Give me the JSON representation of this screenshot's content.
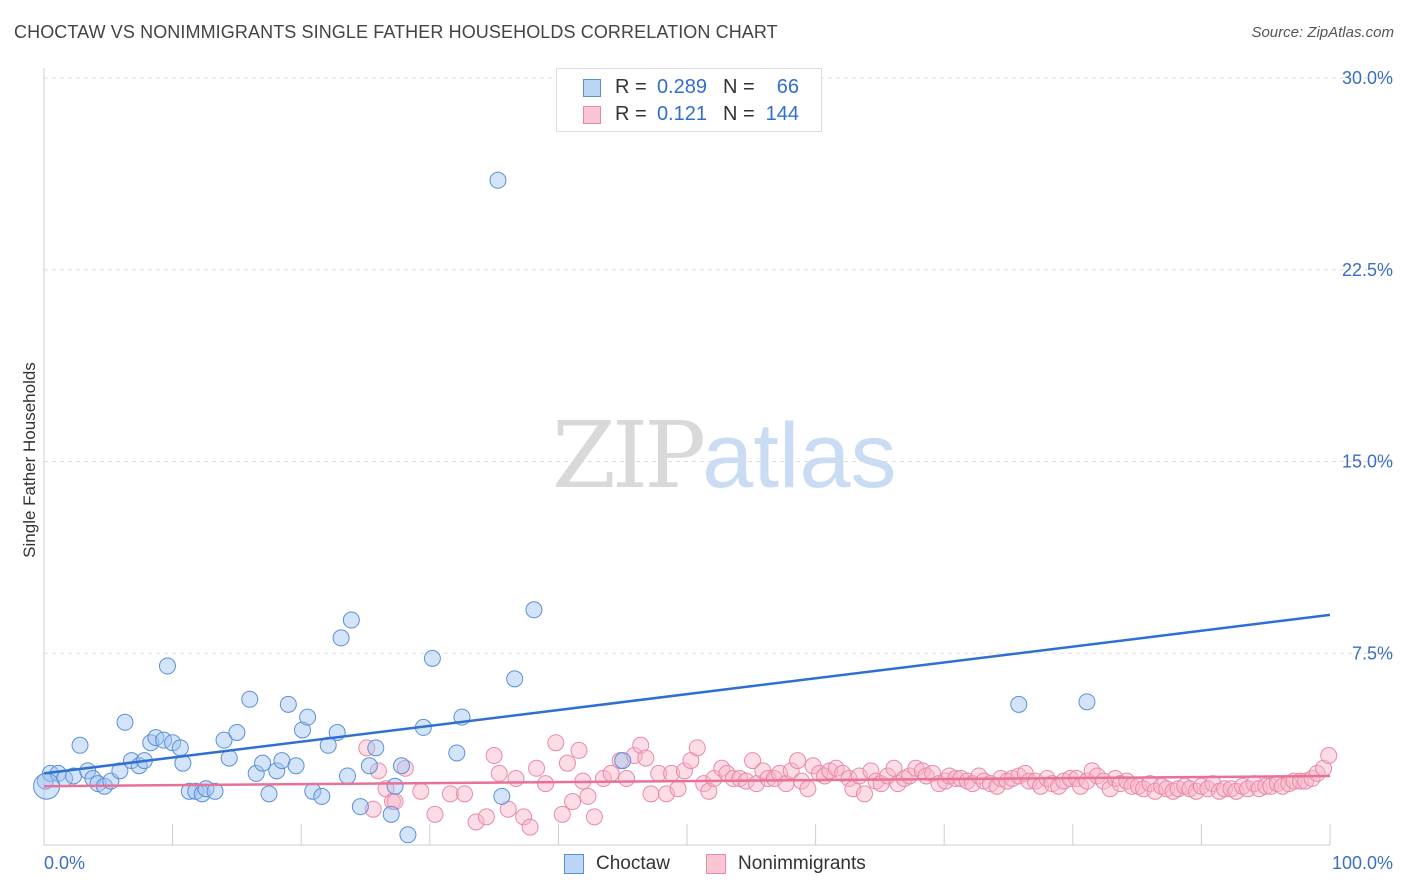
{
  "header": {
    "title": "CHOCTAW VS NONIMMIGRANTS SINGLE FATHER HOUSEHOLDS CORRELATION CHART",
    "source": "Source: ZipAtlas.com"
  },
  "watermark": {
    "zip": "ZIP",
    "atlas": "atlas"
  },
  "legend": {
    "rows": [
      {
        "r_label": "R =",
        "r_value": "0.289",
        "n_label": "N =",
        "n_value": "66",
        "fill": "#bcd5f5",
        "stroke": "#5b8fd8"
      },
      {
        "r_label": "R =",
        "r_value": "0.121",
        "n_label": "N =",
        "n_value": "144",
        "fill": "#f9c5d3",
        "stroke": "#e88aa6"
      }
    ]
  },
  "bottom_legend": {
    "items": [
      "Choctaw",
      "Nonimmigrants"
    ]
  },
  "colors": {
    "choctaw_fill": "rgba(160,196,240,0.45)",
    "choctaw_stroke": "#5b8fd8",
    "choctaw_line": "#2f6fd1",
    "nonimm_fill": "rgba(248,180,200,0.45)",
    "nonimm_stroke": "#e88aa6",
    "nonimm_line": "#e8719a",
    "axis_label": "#3a6fc4",
    "grid": "#dddddd"
  },
  "chart_data": {
    "type": "scatter",
    "title": "CHOCTAW VS NONIMMIGRANTS SINGLE FATHER HOUSEHOLDS CORRELATION CHART",
    "xlabel": "",
    "ylabel": "Single Father Households",
    "xlim": [
      0,
      100
    ],
    "ylim": [
      0,
      30
    ],
    "x_tick_labels": [
      "0.0%",
      "100.0%"
    ],
    "y_ticks": [
      7.5,
      15.0,
      22.5,
      30.0
    ],
    "y_tick_labels": [
      "7.5%",
      "15.0%",
      "22.5%",
      "30.0%"
    ],
    "grid": true,
    "legend_placement": "top-center",
    "series": [
      {
        "name": "Choctaw",
        "r": 0.289,
        "n": 66,
        "trend": [
          [
            0,
            2.8
          ],
          [
            100,
            9.0
          ]
        ],
        "points": [
          [
            0.1,
            2.5
          ],
          [
            0.5,
            2.8
          ],
          [
            1.1,
            2.8
          ],
          [
            1.6,
            2.6
          ],
          [
            2.3,
            2.7
          ],
          [
            2.8,
            3.9
          ],
          [
            3.4,
            2.9
          ],
          [
            3.8,
            2.6
          ],
          [
            4.2,
            2.4
          ],
          [
            4.7,
            2.3
          ],
          [
            5.2,
            2.5
          ],
          [
            5.9,
            2.9
          ],
          [
            6.3,
            4.8
          ],
          [
            6.8,
            3.3
          ],
          [
            7.4,
            3.1
          ],
          [
            7.8,
            3.3
          ],
          [
            8.3,
            4.0
          ],
          [
            8.7,
            4.2
          ],
          [
            9.3,
            4.1
          ],
          [
            9.6,
            7.0
          ],
          [
            10.0,
            4.0
          ],
          [
            10.6,
            3.8
          ],
          [
            10.8,
            3.2
          ],
          [
            11.3,
            2.1
          ],
          [
            11.8,
            2.1
          ],
          [
            12.3,
            2.0
          ],
          [
            12.6,
            2.2
          ],
          [
            13.3,
            2.1
          ],
          [
            14.0,
            4.1
          ],
          [
            14.4,
            3.4
          ],
          [
            15.0,
            4.4
          ],
          [
            16.0,
            5.7
          ],
          [
            16.5,
            2.8
          ],
          [
            17.0,
            3.2
          ],
          [
            17.5,
            2.0
          ],
          [
            18.1,
            2.9
          ],
          [
            18.5,
            3.3
          ],
          [
            19.0,
            5.5
          ],
          [
            19.6,
            3.1
          ],
          [
            20.1,
            4.5
          ],
          [
            20.5,
            5.0
          ],
          [
            20.9,
            2.1
          ],
          [
            21.6,
            1.9
          ],
          [
            22.1,
            3.9
          ],
          [
            22.8,
            4.4
          ],
          [
            23.1,
            8.1
          ],
          [
            23.6,
            2.7
          ],
          [
            23.9,
            8.8
          ],
          [
            24.6,
            1.5
          ],
          [
            25.3,
            3.1
          ],
          [
            25.8,
            3.8
          ],
          [
            27.0,
            1.2
          ],
          [
            27.3,
            2.3
          ],
          [
            27.8,
            3.1
          ],
          [
            28.3,
            0.4
          ],
          [
            29.5,
            4.6
          ],
          [
            30.2,
            7.3
          ],
          [
            32.1,
            3.6
          ],
          [
            32.5,
            5.0
          ],
          [
            35.3,
            26.0
          ],
          [
            35.6,
            1.9
          ],
          [
            36.6,
            6.5
          ],
          [
            38.1,
            9.2
          ],
          [
            45.0,
            3.3
          ],
          [
            75.8,
            5.5
          ],
          [
            81.1,
            5.6
          ]
        ]
      },
      {
        "name": "Nonimmigrants",
        "r": 0.121,
        "n": 144,
        "trend": [
          [
            0,
            2.3
          ],
          [
            100,
            2.7
          ]
        ],
        "points": [
          [
            25.1,
            3.8
          ],
          [
            25.6,
            1.4
          ],
          [
            26.0,
            2.9
          ],
          [
            26.6,
            2.2
          ],
          [
            27.1,
            1.7
          ],
          [
            27.3,
            1.7
          ],
          [
            28.1,
            3.0
          ],
          [
            29.3,
            2.1
          ],
          [
            30.4,
            1.2
          ],
          [
            31.6,
            2.0
          ],
          [
            32.7,
            2.0
          ],
          [
            33.6,
            0.9
          ],
          [
            34.4,
            1.1
          ],
          [
            35.0,
            3.5
          ],
          [
            35.4,
            2.8
          ],
          [
            36.1,
            1.4
          ],
          [
            36.7,
            2.6
          ],
          [
            37.3,
            1.1
          ],
          [
            37.8,
            0.7
          ],
          [
            38.3,
            3.0
          ],
          [
            39.0,
            2.4
          ],
          [
            39.8,
            4.0
          ],
          [
            40.3,
            1.2
          ],
          [
            40.7,
            3.2
          ],
          [
            41.1,
            1.7
          ],
          [
            41.6,
            3.7
          ],
          [
            41.9,
            2.5
          ],
          [
            42.3,
            1.9
          ],
          [
            42.8,
            1.1
          ],
          [
            43.5,
            2.6
          ],
          [
            44.1,
            2.8
          ],
          [
            44.8,
            3.3
          ],
          [
            45.3,
            2.6
          ],
          [
            45.9,
            3.5
          ],
          [
            46.4,
            3.9
          ],
          [
            46.8,
            3.4
          ],
          [
            47.2,
            2.0
          ],
          [
            47.8,
            2.8
          ],
          [
            48.4,
            2.0
          ],
          [
            48.8,
            2.8
          ],
          [
            49.3,
            2.2
          ],
          [
            49.8,
            2.9
          ],
          [
            50.3,
            3.3
          ],
          [
            50.8,
            3.8
          ],
          [
            51.3,
            2.4
          ],
          [
            51.7,
            2.1
          ],
          [
            52.1,
            2.6
          ],
          [
            52.7,
            3.0
          ],
          [
            53.1,
            2.8
          ],
          [
            53.6,
            2.6
          ],
          [
            54.1,
            2.6
          ],
          [
            54.6,
            2.5
          ],
          [
            55.1,
            3.3
          ],
          [
            55.4,
            2.4
          ],
          [
            55.9,
            2.9
          ],
          [
            56.3,
            2.6
          ],
          [
            56.8,
            2.6
          ],
          [
            57.2,
            2.8
          ],
          [
            57.7,
            2.4
          ],
          [
            58.1,
            2.9
          ],
          [
            58.6,
            3.3
          ],
          [
            58.9,
            2.5
          ],
          [
            59.4,
            2.2
          ],
          [
            59.8,
            3.1
          ],
          [
            60.3,
            2.8
          ],
          [
            60.7,
            2.7
          ],
          [
            61.1,
            2.9
          ],
          [
            61.6,
            3.0
          ],
          [
            62.1,
            2.8
          ],
          [
            62.6,
            2.6
          ],
          [
            62.9,
            2.2
          ],
          [
            63.4,
            2.7
          ],
          [
            63.8,
            2.0
          ],
          [
            64.3,
            2.9
          ],
          [
            64.7,
            2.5
          ],
          [
            65.1,
            2.4
          ],
          [
            65.6,
            2.7
          ],
          [
            66.1,
            3.0
          ],
          [
            66.4,
            2.4
          ],
          [
            66.9,
            2.6
          ],
          [
            67.3,
            2.7
          ],
          [
            67.8,
            3.0
          ],
          [
            68.3,
            2.9
          ],
          [
            68.6,
            2.7
          ],
          [
            69.1,
            2.8
          ],
          [
            69.6,
            2.4
          ],
          [
            70.1,
            2.5
          ],
          [
            70.4,
            2.7
          ],
          [
            70.9,
            2.6
          ],
          [
            71.3,
            2.6
          ],
          [
            71.8,
            2.5
          ],
          [
            72.2,
            2.4
          ],
          [
            72.7,
            2.7
          ],
          [
            73.1,
            2.5
          ],
          [
            73.6,
            2.4
          ],
          [
            74.1,
            2.3
          ],
          [
            74.4,
            2.6
          ],
          [
            74.9,
            2.5
          ],
          [
            75.3,
            2.6
          ],
          [
            75.8,
            2.7
          ],
          [
            76.3,
            2.8
          ],
          [
            76.6,
            2.5
          ],
          [
            77.1,
            2.5
          ],
          [
            77.5,
            2.3
          ],
          [
            78.0,
            2.6
          ],
          [
            78.4,
            2.4
          ],
          [
            78.9,
            2.3
          ],
          [
            79.3,
            2.5
          ],
          [
            79.8,
            2.6
          ],
          [
            80.3,
            2.6
          ],
          [
            80.6,
            2.3
          ],
          [
            81.1,
            2.5
          ],
          [
            81.5,
            2.9
          ],
          [
            81.9,
            2.7
          ],
          [
            82.4,
            2.5
          ],
          [
            82.9,
            2.2
          ],
          [
            83.3,
            2.6
          ],
          [
            83.7,
            2.4
          ],
          [
            84.2,
            2.5
          ],
          [
            84.6,
            2.3
          ],
          [
            85.1,
            2.3
          ],
          [
            85.5,
            2.2
          ],
          [
            86.0,
            2.4
          ],
          [
            86.4,
            2.1
          ],
          [
            86.9,
            2.3
          ],
          [
            87.3,
            2.2
          ],
          [
            87.8,
            2.1
          ],
          [
            88.2,
            2.2
          ],
          [
            88.7,
            2.3
          ],
          [
            89.1,
            2.2
          ],
          [
            89.6,
            2.1
          ],
          [
            90.0,
            2.3
          ],
          [
            90.5,
            2.2
          ],
          [
            90.9,
            2.4
          ],
          [
            91.4,
            2.1
          ],
          [
            91.8,
            2.2
          ],
          [
            92.3,
            2.2
          ],
          [
            92.7,
            2.1
          ],
          [
            93.2,
            2.3
          ],
          [
            93.6,
            2.2
          ],
          [
            94.1,
            2.4
          ],
          [
            94.5,
            2.2
          ],
          [
            95.0,
            2.3
          ],
          [
            95.4,
            2.3
          ],
          [
            95.9,
            2.4
          ],
          [
            96.3,
            2.3
          ],
          [
            96.8,
            2.4
          ],
          [
            97.2,
            2.5
          ],
          [
            97.7,
            2.5
          ],
          [
            98.1,
            2.5
          ],
          [
            98.6,
            2.6
          ],
          [
            99.0,
            2.8
          ],
          [
            99.5,
            3.0
          ],
          [
            99.9,
            3.5
          ]
        ]
      }
    ]
  }
}
